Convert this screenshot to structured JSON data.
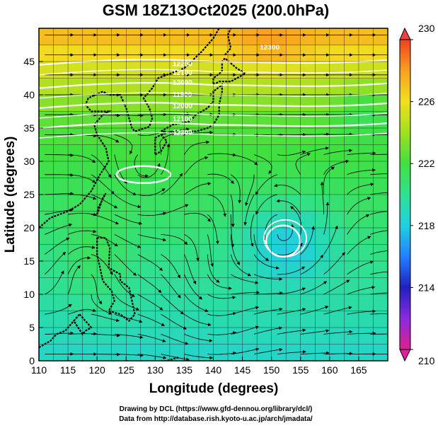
{
  "title": "GSM 18Z13Oct2025 (200.0hPa)",
  "chart_data": {
    "type": "heatmap",
    "title": "GSM 18Z13Oct2025 (200.0hPa)",
    "variable": "temperature (K) with wind streamlines and geopotential height contours",
    "xlabel": "Longitude (degrees)",
    "ylabel": "Latitude  (degrees)",
    "xlim": [
      110,
      170
    ],
    "ylim": [
      0,
      50
    ],
    "x_ticks": [
      110,
      115,
      120,
      125,
      130,
      135,
      140,
      145,
      150,
      155,
      160,
      165
    ],
    "y_ticks": [
      0,
      5,
      10,
      15,
      20,
      25,
      30,
      35,
      40,
      45
    ],
    "colorbar": {
      "min": 210,
      "max": 230,
      "ticks": [
        210,
        214,
        218,
        222,
        226,
        230
      ],
      "colors": [
        "#e0208c",
        "#8a2be2",
        "#2020c0",
        "#2080ff",
        "#20d0e0",
        "#30e090",
        "#40e040",
        "#a0e020",
        "#f0e020",
        "#f8a020",
        "#f04020"
      ]
    },
    "contour_labels": [
      "12300",
      "12200",
      "12100",
      "12000",
      "11900",
      "12000",
      "12100",
      "12200"
    ],
    "highlight_contours": [
      {
        "name": "high-near-127E-28N",
        "center_lon": 128,
        "center_lat": 28
      },
      {
        "name": "high-near-152E-18N",
        "center_lon": 152,
        "center_lat": 18
      }
    ]
  },
  "credits": {
    "line1": "Drawing by DCL (https://www.gfd-dennou.org/library/dcl/)",
    "line2": "Data from http://database.rish.kyoto-u.ac.jp/arch/jmadata/"
  }
}
